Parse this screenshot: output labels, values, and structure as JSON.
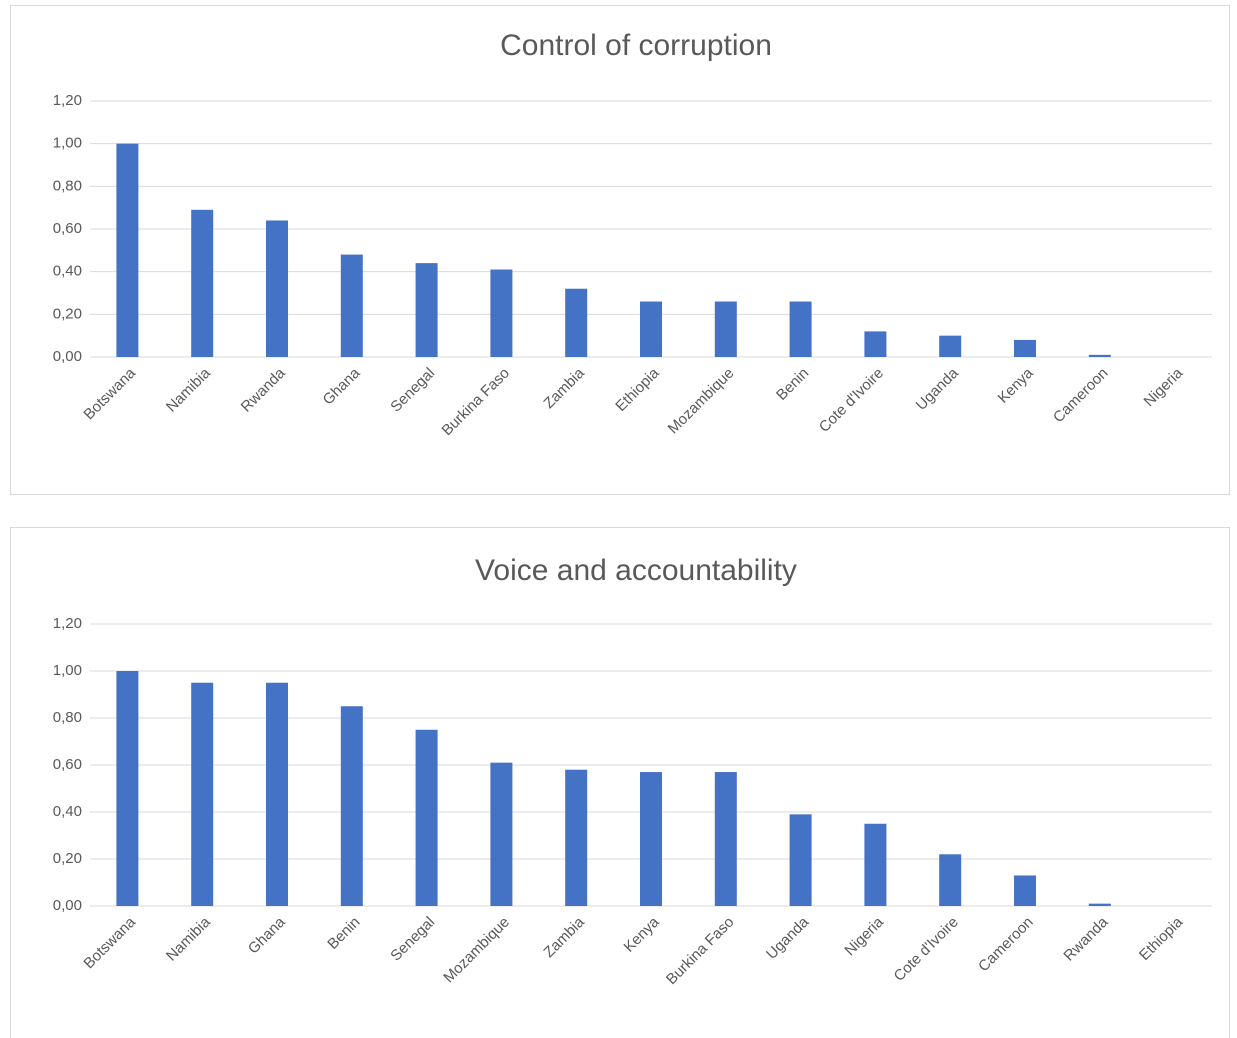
{
  "chart_data": [
    {
      "type": "bar",
      "title": "Control of corruption",
      "categories": [
        "Botswana",
        "Namibia",
        "Rwanda",
        "Ghana",
        "Senegal",
        "Burkina Faso",
        "Zambia",
        "Ethiopia",
        "Mozambique",
        "Benin",
        "Cote d'Ivoire",
        "Uganda",
        "Kenya",
        "Cameroon",
        "Nigeria"
      ],
      "values": [
        1.0,
        0.69,
        0.64,
        0.48,
        0.44,
        0.41,
        0.32,
        0.26,
        0.26,
        0.26,
        0.12,
        0.1,
        0.08,
        0.01,
        0
      ],
      "color": "#4472c4",
      "ylim": [
        0,
        1.2
      ],
      "yticks": [
        {
          "value": 0,
          "label": "0,00"
        },
        {
          "value": 0.2,
          "label": "0,20"
        },
        {
          "value": 0.4,
          "label": "0,40"
        },
        {
          "value": 0.6,
          "label": "0,60"
        },
        {
          "value": 0.8,
          "label": "0,80"
        },
        {
          "value": 1.0,
          "label": "1,00"
        },
        {
          "value": 1.2,
          "label": "1,20"
        }
      ],
      "grid": true
    },
    {
      "type": "bar",
      "title": "Voice and accountability",
      "categories": [
        "Botswana",
        "Namibia",
        "Ghana",
        "Benin",
        "Senegal",
        "Mozambique",
        "Zambia",
        "Kenya",
        "Burkina Faso",
        "Uganda",
        "Nigeria",
        "Cote d'Ivoire",
        "Cameroon",
        "Rwanda",
        "Ethiopia"
      ],
      "values": [
        1.0,
        0.95,
        0.95,
        0.85,
        0.75,
        0.61,
        0.58,
        0.57,
        0.57,
        0.39,
        0.35,
        0.22,
        0.13,
        0.01,
        0
      ],
      "color": "#4472c4",
      "ylim": [
        0,
        1.2
      ],
      "yticks": [
        {
          "value": 0,
          "label": "0,00"
        },
        {
          "value": 0.2,
          "label": "0,20"
        },
        {
          "value": 0.4,
          "label": "0,40"
        },
        {
          "value": 0.6,
          "label": "0,60"
        },
        {
          "value": 0.8,
          "label": "0,80"
        },
        {
          "value": 1.0,
          "label": "1,00"
        },
        {
          "value": 1.2,
          "label": "1,20"
        }
      ],
      "grid": true
    }
  ]
}
